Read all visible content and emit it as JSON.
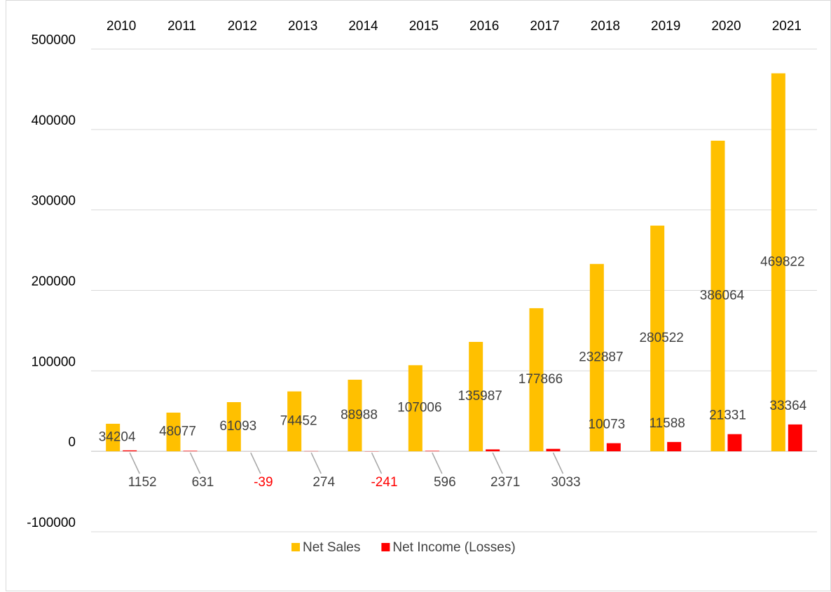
{
  "chart_data": {
    "type": "bar",
    "categories": [
      "2010",
      "2011",
      "2012",
      "2013",
      "2014",
      "2015",
      "2016",
      "2017",
      "2018",
      "2019",
      "2020",
      "2021"
    ],
    "series": [
      {
        "name": "Net Sales",
        "color": "#ffc000",
        "values": [
          34204,
          48077,
          61093,
          74452,
          88988,
          107006,
          135987,
          177866,
          232887,
          280522,
          386064,
          469822
        ]
      },
      {
        "name": "Net Income (Losses)",
        "color": "#ff0000",
        "negative_label_color": "#ff0000",
        "values": [
          1152,
          631,
          -39,
          274,
          -241,
          596,
          2371,
          3033,
          10073,
          11588,
          21331,
          33364
        ]
      }
    ],
    "ylim": [
      -100000,
      500000
    ],
    "yticks": [
      -100000,
      0,
      100000,
      200000,
      300000,
      400000,
      500000
    ],
    "grid": true,
    "legend": "bottom"
  }
}
